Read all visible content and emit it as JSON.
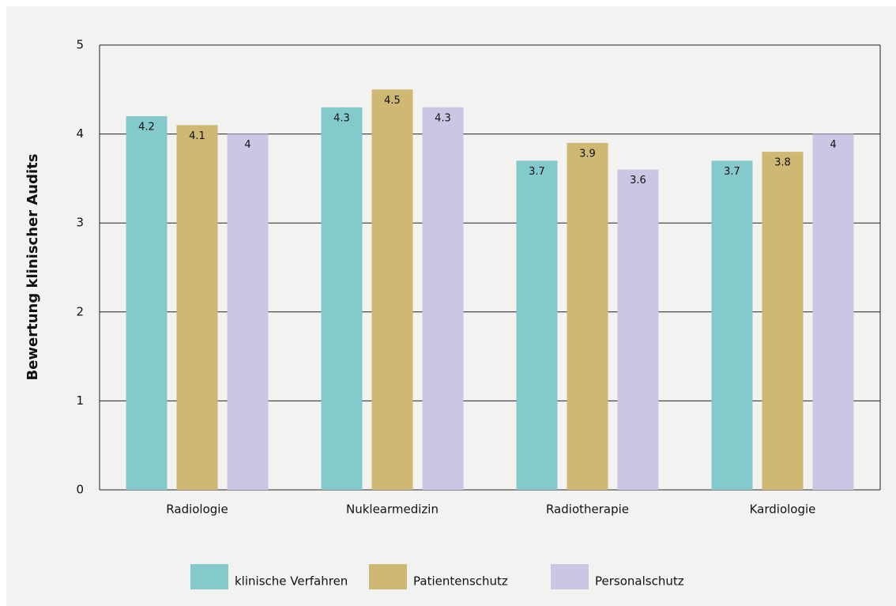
{
  "chart_data": {
    "type": "bar",
    "y_label": "Bewertung klinischer Audits",
    "categories": [
      "Radiologie",
      "Nuklearmedizin",
      "Radiotherapie",
      "Kardiologie"
    ],
    "series": [
      {
        "name": "klinische Verfahren",
        "color": "#84c9cc",
        "values": [
          4.2,
          4.3,
          3.7,
          3.7
        ]
      },
      {
        "name": "Patientenschutz",
        "color": "#cfb874",
        "values": [
          4.1,
          4.5,
          3.9,
          3.8
        ]
      },
      {
        "name": "Personalschutz",
        "color": "#cdc5e4",
        "values": [
          4,
          4.3,
          3.6,
          4
        ]
      }
    ],
    "ylim": [
      0,
      5
    ],
    "yticks": [
      0,
      1,
      2,
      3,
      4,
      5
    ],
    "grid": true,
    "legend": "bottom"
  }
}
